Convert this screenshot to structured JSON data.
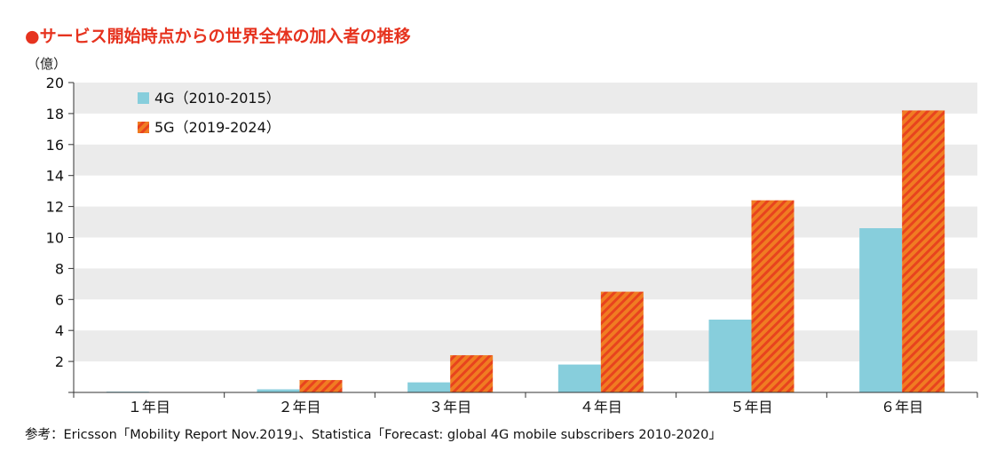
{
  "title": "●サービス開始時点からの世界全体の加入者の推移",
  "source": "参考：Ericsson「Mobility Report Nov.2019」、Statistica「Forecast: global 4G mobile subscribers 2010-2020」",
  "colors": {
    "title": "#e6331f",
    "series_4g": "#87cedc",
    "series_5g_base": "#f07c22",
    "series_5g_stripe": "#e8431e",
    "band": "#ebebeb"
  },
  "chart_data": {
    "type": "bar",
    "ylabel": "（億）",
    "ylim": [
      0,
      20
    ],
    "yticks": [
      2,
      4,
      6,
      8,
      10,
      12,
      14,
      16,
      18,
      20
    ],
    "grid": "alternating horizontal bands",
    "legend_position": "top-left",
    "categories": [
      "１年目",
      "２年目",
      "３年目",
      "４年目",
      "５年目",
      "６年目"
    ],
    "series": [
      {
        "name": "4G（2010-2015）",
        "values": [
          0.05,
          0.2,
          0.65,
          1.8,
          4.7,
          10.6
        ]
      },
      {
        "name": "5G（2019-2024）",
        "values": [
          0,
          0.8,
          2.4,
          6.5,
          12.4,
          18.2
        ]
      }
    ]
  }
}
